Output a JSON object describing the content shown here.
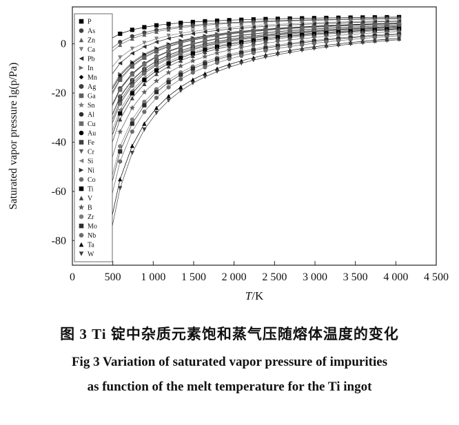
{
  "figure": {
    "caption_zh": "图 3  Ti 锭中杂质元素饱和蒸气压随熔体温度的变化",
    "caption_en_line1": "Fig 3  Variation of saturated vapor pressure of impurities",
    "caption_en_line2": "as function of the melt temperature for the Ti ingot"
  },
  "chart_data": {
    "type": "line",
    "title": "",
    "xlabel": "T/K",
    "ylabel": "Saturated vapor pressure lg(p/Pa)",
    "x_range": [
      0,
      4500
    ],
    "y_range": [
      -90,
      15
    ],
    "x_tick_values": [
      0,
      500,
      1000,
      1500,
      2000,
      2500,
      3000,
      3500,
      4000,
      4500
    ],
    "x_tick_labels": [
      "0",
      "500",
      "1 000",
      "1 500",
      "2 000",
      "2 500",
      "3 000",
      "3 500",
      "4 000",
      "4 500"
    ],
    "y_tick_values": [
      0,
      -20,
      -40,
      -60,
      -80
    ],
    "grid": false,
    "legend_position": "inside-left",
    "model": "lg(p/Pa) = A*(1 - T1/T); A = model_A; T1 = temperature (K) where vapor pressure = 1 Pa; curves sampled 440-4100 K",
    "model_A": 12,
    "sample_T_start": 440,
    "sample_T_end": 4100,
    "sample_T_step": 150,
    "x_sample": [
      500,
      1000,
      1500,
      2000,
      2500,
      3000,
      3500,
      4000
    ],
    "series": [
      {
        "name": "P",
        "marker": "square",
        "color": "#000000",
        "T1_K": 390,
        "y_sample": [
          2.6,
          7.3,
          8.9,
          9.7,
          10.1,
          10.4,
          10.7,
          10.8
        ]
      },
      {
        "name": "As",
        "marker": "circle",
        "color": "#404040",
        "T1_K": 553,
        "y_sample": [
          -1.3,
          5.4,
          7.6,
          8.7,
          9.3,
          9.8,
          10.1,
          10.3
        ]
      },
      {
        "name": "Zn",
        "marker": "triangle-up",
        "color": "#5e5e5e",
        "T1_K": 610,
        "y_sample": [
          -2.6,
          4.7,
          7.1,
          8.3,
          9.1,
          9.6,
          9.9,
          10.2
        ]
      },
      {
        "name": "Ca",
        "marker": "triangle-down",
        "color": "#7d7d7d",
        "T1_K": 864,
        "y_sample": [
          -8.7,
          1.6,
          5.1,
          6.8,
          7.9,
          8.5,
          9.0,
          9.4
        ]
      },
      {
        "name": "Pb",
        "marker": "triangle-left",
        "color": "#2e2e2e",
        "T1_K": 978,
        "y_sample": [
          -11.5,
          0.3,
          4.2,
          6.1,
          7.3,
          8.1,
          8.6,
          9.1
        ]
      },
      {
        "name": "In",
        "marker": "triangle-right",
        "color": "#6b6b6b",
        "T1_K": 1196,
        "y_sample": [
          -16.7,
          -2.4,
          2.4,
          4.8,
          6.3,
          7.2,
          7.9,
          8.4
        ]
      },
      {
        "name": "Mn",
        "marker": "diamond",
        "color": "#000000",
        "T1_K": 1228,
        "y_sample": [
          -17.5,
          -2.7,
          2.2,
          4.6,
          6.1,
          7.1,
          7.8,
          8.3
        ]
      },
      {
        "name": "Ag",
        "marker": "hexagon",
        "color": "#404040",
        "T1_K": 1283,
        "y_sample": [
          -18.8,
          -3.4,
          1.7,
          4.3,
          5.8,
          6.9,
          7.6,
          8.2
        ]
      },
      {
        "name": "Ga",
        "marker": "square",
        "color": "#5e5e5e",
        "T1_K": 1310,
        "y_sample": [
          -19.4,
          -3.7,
          1.5,
          4.1,
          5.7,
          6.8,
          7.5,
          8.1
        ]
      },
      {
        "name": "Sn",
        "marker": "star",
        "color": "#7d7d7d",
        "T1_K": 1497,
        "y_sample": [
          -23.9,
          -6.0,
          0.0,
          3.0,
          4.8,
          6.0,
          6.9,
          7.5
        ]
      },
      {
        "name": "Al",
        "marker": "circle",
        "color": "#2e2e2e",
        "T1_K": 1482,
        "y_sample": [
          -23.6,
          -5.8,
          0.1,
          3.1,
          4.9,
          6.1,
          6.9,
          7.6
        ]
      },
      {
        "name": "Cu",
        "marker": "square",
        "color": "#6b6b6b",
        "T1_K": 1509,
        "y_sample": [
          -24.2,
          -6.1,
          -0.1,
          2.9,
          4.8,
          6.0,
          6.8,
          7.5
        ]
      },
      {
        "name": "Au",
        "marker": "circle",
        "color": "#000000",
        "T1_K": 1646,
        "y_sample": [
          -27.5,
          -7.8,
          -1.2,
          2.1,
          4.1,
          5.4,
          6.4,
          7.1
        ]
      },
      {
        "name": "Fe",
        "marker": "square",
        "color": "#404040",
        "T1_K": 1728,
        "y_sample": [
          -29.5,
          -8.7,
          -1.8,
          1.6,
          3.7,
          5.1,
          6.1,
          6.8
        ]
      },
      {
        "name": "Cr",
        "marker": "triangle-down",
        "color": "#5e5e5e",
        "T1_K": 1656,
        "y_sample": [
          -27.7,
          -7.9,
          -1.2,
          2.1,
          4.1,
          5.4,
          6.3,
          7.0
        ]
      },
      {
        "name": "Si",
        "marker": "triangle-left",
        "color": "#7d7d7d",
        "T1_K": 1908,
        "y_sample": [
          -33.8,
          -10.9,
          -3.3,
          0.6,
          2.8,
          4.4,
          5.5,
          6.3
        ]
      },
      {
        "name": "Ni",
        "marker": "triangle-right",
        "color": "#2e2e2e",
        "T1_K": 1783,
        "y_sample": [
          -30.8,
          -9.4,
          -2.3,
          1.3,
          3.4,
          4.9,
          5.9,
          6.7
        ]
      },
      {
        "name": "Co",
        "marker": "circle",
        "color": "#6b6b6b",
        "T1_K": 1790,
        "y_sample": [
          -31.0,
          -9.5,
          -2.3,
          1.3,
          3.4,
          4.8,
          5.9,
          6.6
        ]
      },
      {
        "name": "Ti",
        "marker": "square",
        "color": "#000000",
        "T1_K": 1982,
        "y_sample": [
          -35.6,
          -11.8,
          -3.9,
          0.1,
          2.5,
          4.1,
          5.2,
          6.1
        ]
      },
      {
        "name": "V",
        "marker": "triangle-up",
        "color": "#404040",
        "T1_K": 2101,
        "y_sample": [
          -38.4,
          -13.2,
          -4.8,
          -0.6,
          1.9,
          3.6,
          4.8,
          5.7
        ]
      },
      {
        "name": "B",
        "marker": "star",
        "color": "#5e5e5e",
        "T1_K": 2348,
        "y_sample": [
          -44.4,
          -16.2,
          -6.8,
          -2.1,
          0.7,
          2.6,
          3.9,
          5.0
        ]
      },
      {
        "name": "Zr",
        "marker": "circle",
        "color": "#7d7d7d",
        "T1_K": 2639,
        "y_sample": [
          -51.3,
          -19.7,
          -9.1,
          -3.8,
          -0.7,
          1.4,
          2.9,
          4.1
        ]
      },
      {
        "name": "Mo",
        "marker": "square",
        "color": "#2e2e2e",
        "T1_K": 2742,
        "y_sample": [
          -53.8,
          -20.9,
          -9.9,
          -4.5,
          -1.2,
          1.0,
          2.6,
          3.8
        ]
      },
      {
        "name": "Nb",
        "marker": "circle",
        "color": "#6b6b6b",
        "T1_K": 2942,
        "y_sample": [
          -58.6,
          -23.3,
          -11.5,
          -5.7,
          -2.1,
          0.2,
          1.9,
          3.2
        ]
      },
      {
        "name": "Ta",
        "marker": "triangle-up",
        "color": "#000000",
        "T1_K": 3297,
        "y_sample": [
          -67.1,
          -27.6,
          -14.4,
          -7.8,
          -3.8,
          -1.2,
          0.7,
          2.1
        ]
      },
      {
        "name": "W",
        "marker": "triangle-down",
        "color": "#404040",
        "T1_K": 3477,
        "y_sample": [
          -71.4,
          -29.7,
          -15.8,
          -8.9,
          -4.7,
          -1.9,
          0.1,
          1.6
        ]
      }
    ]
  }
}
